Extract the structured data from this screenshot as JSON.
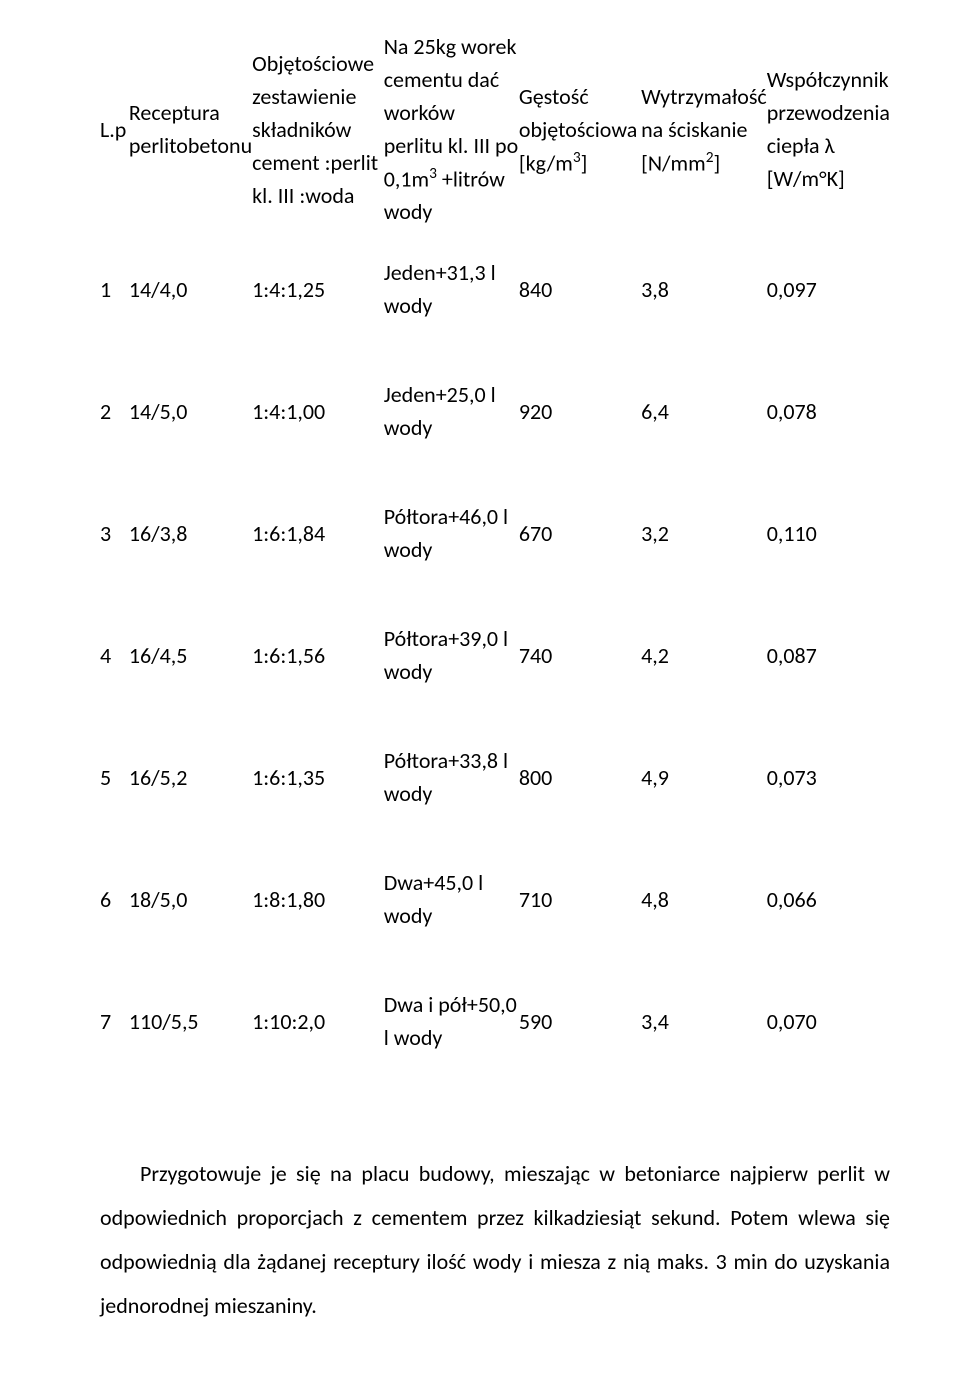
{
  "headers": {
    "lp": "L.p",
    "receptura": "Receptura perlitobetonu",
    "zestawienie": "Objętościowe zestawienie składników cement :perlit kl. III :woda",
    "na25kg": "Na 25kg worek cementu dać worków perlitu kl. III po 0,1m",
    "na25kg_sup": "3",
    "litrow": "+litrów wody",
    "gestosc": "Gęstość objętościowa [kg/m",
    "gestosc_sup": "3",
    "gestosc_end": "]",
    "wytrzymalosc": "Wytrzymałość na ściskanie [N/mm",
    "wytrzymalosc_sup": "2",
    "wytrzymalosc_end": "]",
    "wspolczynnik": "Współczynnik przewodzenia ciepła λ [W/m°K]"
  },
  "rows": [
    {
      "lp": "1",
      "rec": "14/4,0",
      "zes": "1:4:1,25",
      "na": "Jeden+31,3 l wody",
      "ges": "840",
      "wyt": "3,8",
      "wsp": "0,097"
    },
    {
      "lp": "2",
      "rec": "14/5,0",
      "zes": "1:4:1,00",
      "na": "Jeden+25,0 l wody",
      "ges": "920",
      "wyt": "6,4",
      "wsp": "0,078"
    },
    {
      "lp": "3",
      "rec": "16/3,8",
      "zes": "1:6:1,84",
      "na": "Półtora+46,0 l wody",
      "ges": "670",
      "wyt": "3,2",
      "wsp": "0,110"
    },
    {
      "lp": "4",
      "rec": "16/4,5",
      "zes": "1:6:1,56",
      "na": "Półtora+39,0 l wody",
      "ges": "740",
      "wyt": "4,2",
      "wsp": "0,087"
    },
    {
      "lp": "5",
      "rec": "16/5,2",
      "zes": "1:6:1,35",
      "na": "Półtora+33,8 l wody",
      "ges": "800",
      "wyt": "4,9",
      "wsp": "0,073"
    },
    {
      "lp": "6",
      "rec": "18/5,0",
      "zes": "1:8:1,80",
      "na": "Dwa+45,0 l wody",
      "ges": "710",
      "wyt": "4,8",
      "wsp": "0,066"
    },
    {
      "lp": "7",
      "rec": "110/5,5",
      "zes": "1:10:2,0",
      "na": "Dwa i pół+50,0 l wody",
      "ges": "590",
      "wyt": "3,4",
      "wsp": "0,070"
    }
  ],
  "paragraph": "Przygotowuje je się na placu budowy, mieszając w betoniarce najpierw perlit w odpowiednich proporcjach z cementem przez kilkadziesiąt sekund. Potem wlewa się odpowiednią dla żądanej receptury ilość wody i miesza z nią maks. 3 min do uzyskania jednorodnej mieszaniny."
}
